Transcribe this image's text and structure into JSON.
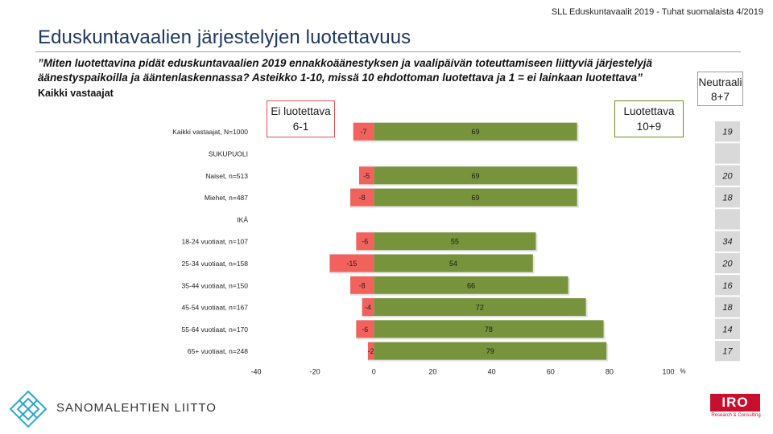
{
  "header": {
    "source": "SLL Eduskuntavaalit 2019 - Tuhat suomalaista 4/2019",
    "title": "Eduskuntavaalien järjestelyjen luotettavuus",
    "question": "”Miten luotettavina pidät eduskuntavaalien 2019 ennakkoäänestyksen ja vaalipäivän toteuttamiseen liittyviä järjestelyjä äänestyspaikoilla ja ääntenlaskennassa? Asteikko 1-10, missä 10 ehdottoman luotettava ja 1 = ei lainkaan luotettava”",
    "base": "Kaikki vastaajat"
  },
  "legend_boxes": {
    "negative": {
      "line1": "Ei luotettava",
      "line2": "6-1"
    },
    "positive": {
      "line1": "Luotettava",
      "line2": "10+9"
    },
    "neutral": {
      "line1": "Neutraali",
      "line2": "8+7"
    }
  },
  "logos": {
    "left_text": "SANOMALEHTIEN LIITTO",
    "right_text": "IRO",
    "right_sub": "Research & Consulting"
  },
  "colors": {
    "negative": "#f2625d",
    "positive": "#77933c",
    "neutral_cell": "#d9d9d9",
    "title": "#1f3864"
  },
  "chart_data": {
    "type": "bar",
    "orientation": "horizontal-diverging",
    "xlim": [
      -40,
      100
    ],
    "xticks": [
      -40,
      -20,
      0,
      20,
      40,
      60,
      80,
      100
    ],
    "xunit": "%",
    "rows": [
      {
        "label": "Kaikki vastaajat, N=1000",
        "neg": -7,
        "pos": 69,
        "neutral": 19
      },
      {
        "label": "SUKUPUOLI",
        "header": true
      },
      {
        "label": "Naiset, n=513",
        "neg": -5,
        "pos": 69,
        "neutral": 20
      },
      {
        "label": "Miehet, n=487",
        "neg": -8,
        "pos": 69,
        "neutral": 18
      },
      {
        "label": "IKÄ",
        "header": true
      },
      {
        "label": "18-24 vuotiaat, n=107",
        "neg": -6,
        "pos": 55,
        "neutral": 34
      },
      {
        "label": "25-34 vuotiaat, n=158",
        "neg": -15,
        "pos": 54,
        "neutral": 20
      },
      {
        "label": "35-44 vuotiaat, n=150",
        "neg": -8,
        "pos": 66,
        "neutral": 16
      },
      {
        "label": "45-54 vuotiaat, n=167",
        "neg": -4,
        "pos": 72,
        "neutral": 18
      },
      {
        "label": "55-64 vuotiaat, n=170",
        "neg": -6,
        "pos": 78,
        "neutral": 14
      },
      {
        "label": "65+ vuotiaat, n=248",
        "neg": -2,
        "pos": 79,
        "neutral": 17
      }
    ]
  }
}
